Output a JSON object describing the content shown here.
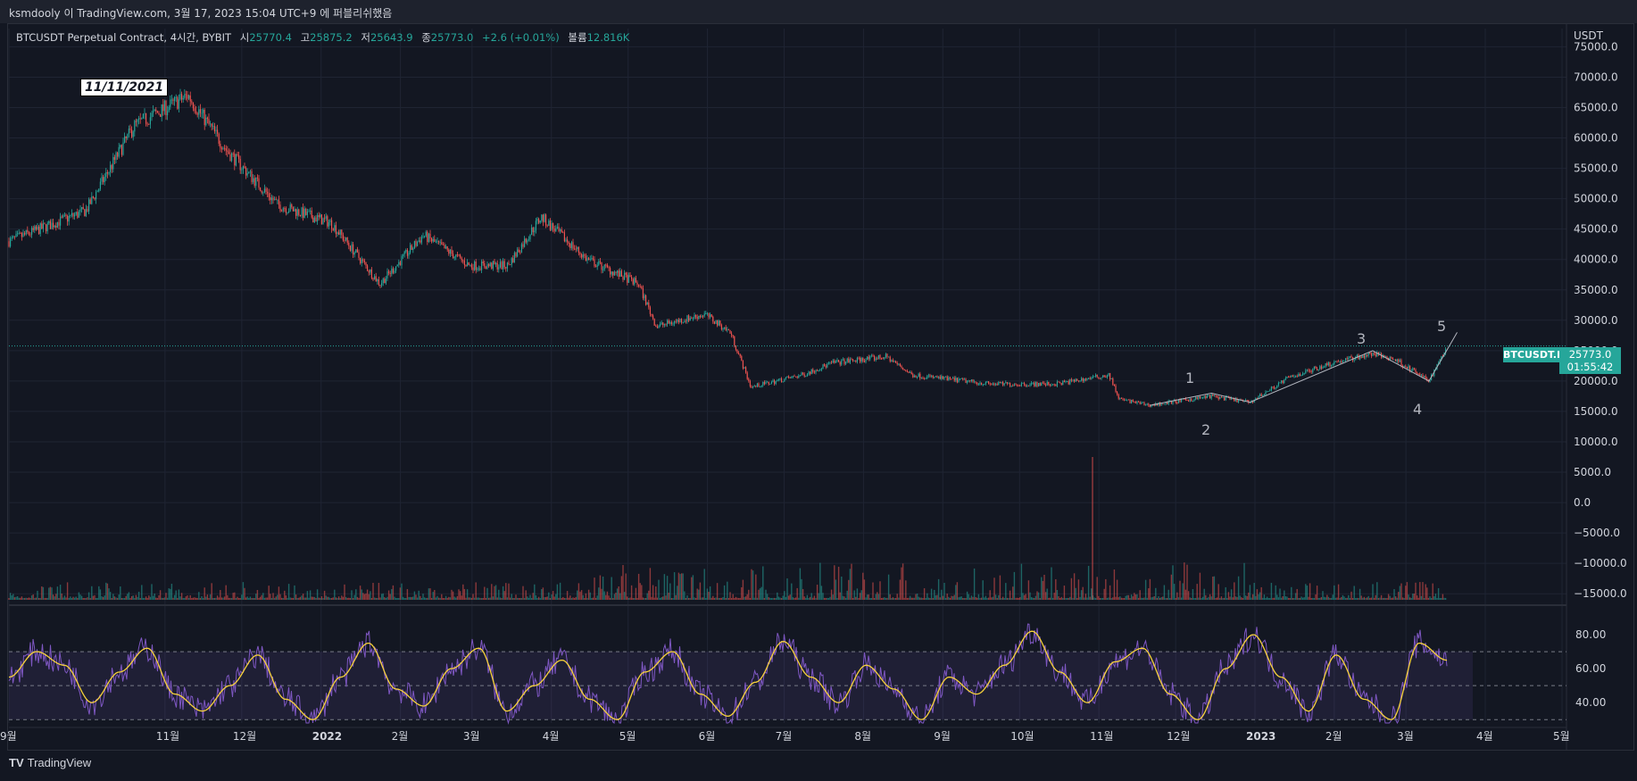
{
  "header": {
    "caption": "ksmdooly 이 TradingView.com, 3월 17, 2023 15:04 UTC+9 에 퍼블리쉬했음"
  },
  "legend": {
    "symbol": "BTCUSDT Perpetual Contract, 4시간, BYBIT",
    "open_label": "시",
    "open": "25770.4",
    "high_label": "고",
    "high": "25875.2",
    "low_label": "저",
    "low": "25643.9",
    "close_label": "종",
    "close": "25773.0",
    "change": "+2.6 (+0.01%)",
    "volume_label": "볼륨",
    "volume": "12.816K"
  },
  "currency": "USDT",
  "price_badge": {
    "symbol": "BTCUSDT.P",
    "price": "25773.0",
    "countdown": "01:55:42"
  },
  "date_annotation": "11/11/2021",
  "wave_labels": [
    "1",
    "2",
    "3",
    "4",
    "5"
  ],
  "footer": {
    "logo": "TV",
    "brand": "TradingView"
  },
  "colors": {
    "background": "#131722",
    "up": "#26a69a",
    "down": "#ef5350",
    "rsi": "#7e57c2",
    "rsi_ma": "#f7d23a"
  },
  "chart_data": [
    {
      "type": "line",
      "title": "BTCUSDT Perpetual Contract, 4시간, BYBIT",
      "ylabel": "USDT",
      "x": [
        "2021-09",
        "2021-10-01",
        "2021-10-20",
        "2021-11-10",
        "2021-11-25",
        "2021-12-15",
        "2022-01-05",
        "2022-01-24",
        "2022-02-10",
        "2022-02-28",
        "2022-03-15",
        "2022-03-28",
        "2022-04-15",
        "2022-05-05",
        "2022-05-12",
        "2022-05-31",
        "2022-06-10",
        "2022-06-18",
        "2022-07-08",
        "2022-07-20",
        "2022-08-10",
        "2022-08-20",
        "2022-09-10",
        "2022-09-20",
        "2022-10-15",
        "2022-11-05",
        "2022-11-09",
        "2022-11-21",
        "2022-12-15",
        "2022-12-30",
        "2023-01-14",
        "2023-01-31",
        "2023-02-16",
        "2023-02-25",
        "2023-03-10",
        "2023-03-17"
      ],
      "values": [
        43000,
        48000,
        62000,
        67000,
        58000,
        49000,
        46000,
        36000,
        44000,
        39000,
        39000,
        47000,
        40000,
        36000,
        29000,
        31000,
        28000,
        19000,
        21000,
        23000,
        24000,
        21000,
        20000,
        19500,
        19500,
        21000,
        17000,
        16000,
        17500,
        16500,
        20500,
        23000,
        24500,
        23500,
        20000,
        25773
      ],
      "ylim": [
        -16000,
        78000
      ],
      "yticks": [
        "75000.0",
        "70000.0",
        "65000.0",
        "60000.0",
        "55000.0",
        "50000.0",
        "45000.0",
        "40000.0",
        "35000.0",
        "30000.0",
        "25000.0",
        "20000.0",
        "15000.0",
        "10000.0",
        "5000.0",
        "0.0",
        "−5000.0",
        "−10000.0",
        "−15000.0"
      ],
      "xticks": [
        "9월",
        "11월",
        "12월",
        "2022",
        "2월",
        "3월",
        "4월",
        "5월",
        "6월",
        "7월",
        "8월",
        "9월",
        "10월",
        "11월",
        "12월",
        "2023",
        "2월",
        "3월",
        "4월",
        "5월"
      ],
      "grid": true
    },
    {
      "type": "line",
      "series": [
        {
          "name": "",
          "values": [
            55,
            70,
            62,
            40,
            58,
            72,
            45,
            35,
            50,
            68,
            42,
            30,
            55,
            75,
            48,
            38,
            60,
            72,
            35,
            50,
            65,
            42,
            30,
            58,
            70,
            45,
            32,
            52,
            76,
            55,
            40,
            62,
            48,
            30,
            55,
            45,
            62,
            82,
            58,
            40,
            64,
            72,
            45,
            30,
            60,
            80,
            55,
            35,
            68,
            42,
            30,
            75,
            65
          ]
        }
      ],
      "ylim": [
        28,
        90
      ],
      "yticks": [
        "80.00",
        "60.00",
        "40.00"
      ],
      "bands": [
        70,
        50,
        30
      ]
    }
  ]
}
